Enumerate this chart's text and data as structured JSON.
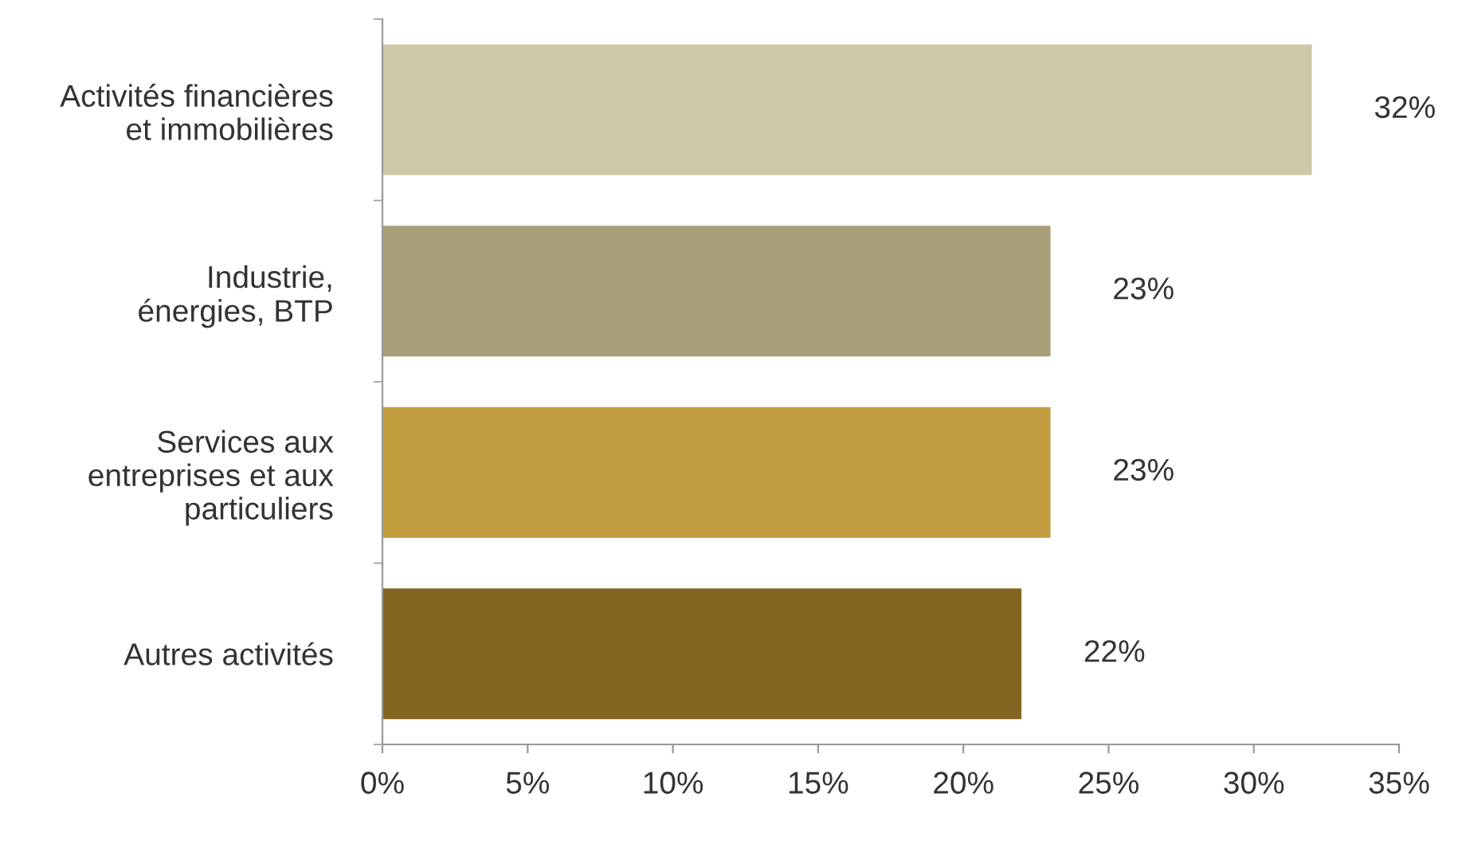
{
  "chart_data": {
    "type": "bar",
    "orientation": "horizontal",
    "categories": [
      "Activités financières\net immobilières",
      "Industrie,\nénergies, BTP",
      "Services aux\nentreprises et aux\nparticuliers",
      "Autres activités"
    ],
    "values": [
      32,
      23,
      23,
      22
    ],
    "colors": [
      "#cfc8a8",
      "#a89f78",
      "#c29d3f",
      "#846622"
    ],
    "value_labels": [
      "32%",
      "23%",
      "23%",
      "22%"
    ],
    "xlim": [
      0,
      35
    ],
    "xticks": [
      {
        "value": 0,
        "label": "0%"
      },
      {
        "value": 5,
        "label": "5%"
      },
      {
        "value": 10,
        "label": "10%"
      },
      {
        "value": 15,
        "label": "15%"
      },
      {
        "value": 20,
        "label": "20%"
      },
      {
        "value": 25,
        "label": "25%"
      },
      {
        "value": 30,
        "label": "30%"
      },
      {
        "value": 35,
        "label": "35%"
      }
    ],
    "grid": false,
    "legend": false
  }
}
